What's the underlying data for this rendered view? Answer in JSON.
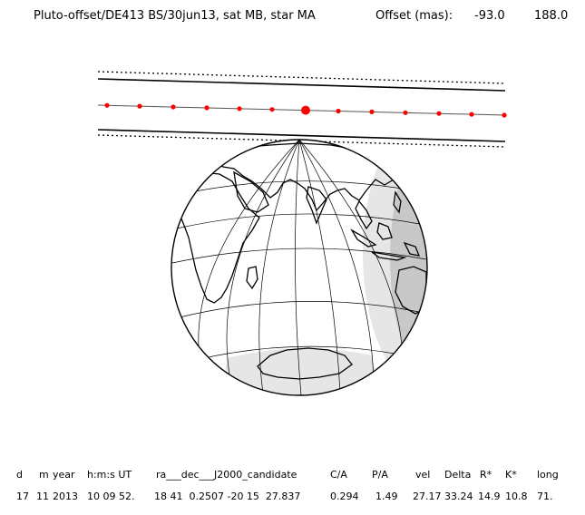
{
  "title": {
    "main": "Pluto-offset/DE413 BS/30jun13, sat MB, star MA",
    "offset_label": "Offset (mas):",
    "offset_x": "-93.0",
    "offset_y": "188.0"
  },
  "table": {
    "headers": [
      "d",
      "m",
      "year",
      "h:m:s UT",
      "ra___dec___J2000_candidate",
      "C/A",
      "P/A",
      "vel",
      "Delta",
      "R*",
      "K*",
      "long"
    ],
    "values": [
      "17",
      "11",
      "2013",
      "10 09 52.",
      "18 41  0.2507 -20 15  27.837",
      "0.294",
      "1.49",
      "27.17",
      "33.24",
      "14.9",
      "10.8",
      "71."
    ]
  },
  "colors": {
    "track": "#ff0000",
    "night_shade": "#c8c8c8",
    "twilight_shade": "#e6e6e6",
    "ink": "#000000"
  }
}
